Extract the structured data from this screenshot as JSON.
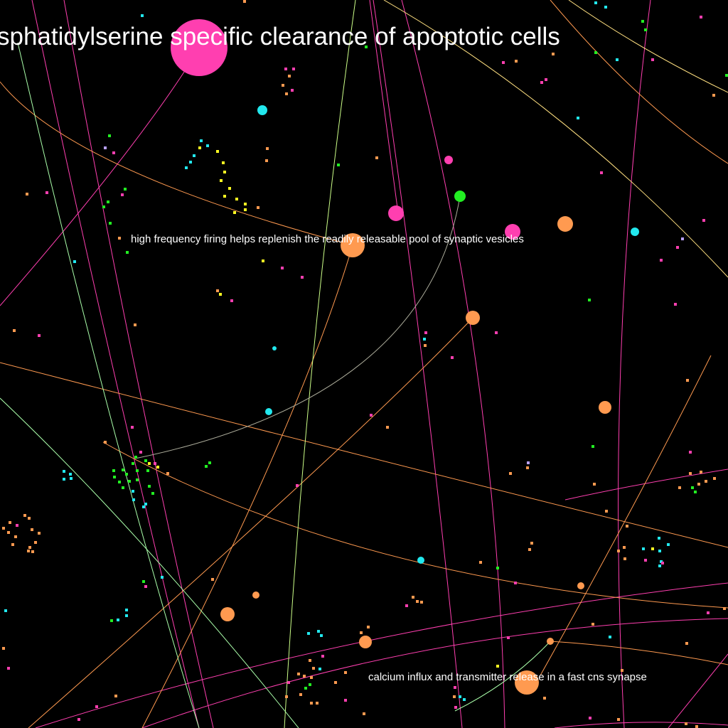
{
  "labels": {
    "main_title": "sphatidylserine specific clearance of apoptotic cells",
    "mid_label": "high frequency firing helps replenish the readily releasable pool of synaptic vesicles",
    "bottom_label": "calcium influx and transmitter release in a fast cns synapse"
  },
  "colors": {
    "background": "#000000",
    "pink": "#ff3fb0",
    "orange": "#ff9a50",
    "cyan": "#22e8ee",
    "green": "#22ee22",
    "yellow": "#ffff22",
    "lavender": "#b8a0ff",
    "light_green": "#aaffaa",
    "white_text": "#ffffff"
  }
}
